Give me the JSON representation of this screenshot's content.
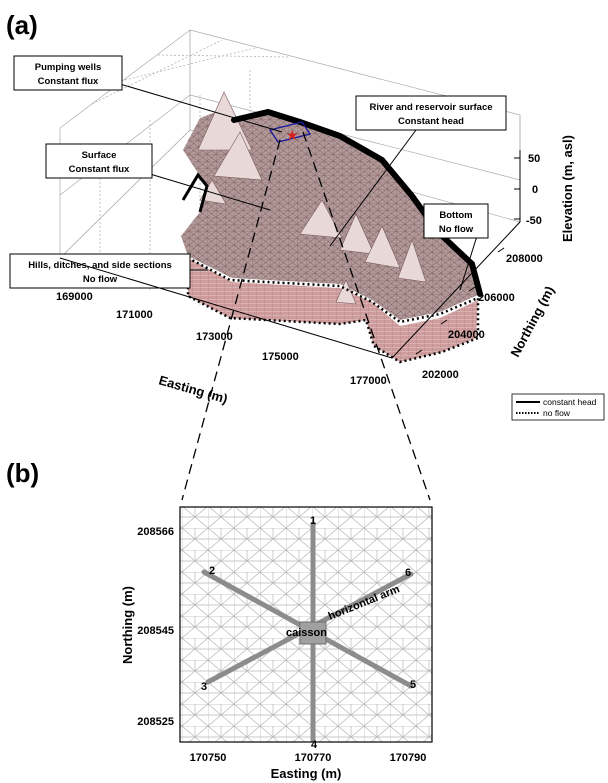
{
  "panel_a": {
    "label": "(a)",
    "callouts": {
      "pumping_wells": {
        "line1": "Pumping wells",
        "line2": "Constant flux"
      },
      "river": {
        "line1": "River and reservoir surface",
        "line2": "Constant head"
      },
      "surface": {
        "line1": "Surface",
        "line2": "Constant flux"
      },
      "bottom": {
        "line1": "Bottom",
        "line2": "No flow"
      },
      "hills": {
        "line1": "Hills, ditches, and side sections",
        "line2": "No flow"
      }
    },
    "elevation_axis": {
      "title": "Elevation (m, asl)",
      "ticks": [
        "50",
        "0",
        "-50"
      ]
    },
    "northing_axis": {
      "title": "Northing (m)",
      "ticks": [
        "208000",
        "206000",
        "204000",
        "202000"
      ]
    },
    "easting_axis": {
      "title": "Easting (m)",
      "ticks": [
        "169000",
        "171000",
        "173000",
        "175000",
        "177000"
      ]
    },
    "legend": {
      "solid": "constant head",
      "dotted": "no flow"
    }
  },
  "panel_b": {
    "label": "(b)",
    "x_axis": {
      "title": "Easting (m)",
      "ticks": [
        "170750",
        "170770",
        "170790"
      ]
    },
    "y_axis": {
      "title": "Northing (m)",
      "ticks": [
        "208566",
        "208545",
        "208525"
      ]
    },
    "well_labels": [
      "1",
      "2",
      "3",
      "4",
      "5",
      "6"
    ],
    "caisson_label": "caisson",
    "arm_label": "horizontal arm"
  },
  "colors": {
    "surface_fill": "#a88c8c",
    "side_fill": "#c79a9a",
    "constant_head": "#000000",
    "well_arm": "#8c8c8c",
    "well_box": "#1a1aa0",
    "well_star": "#d42020"
  }
}
